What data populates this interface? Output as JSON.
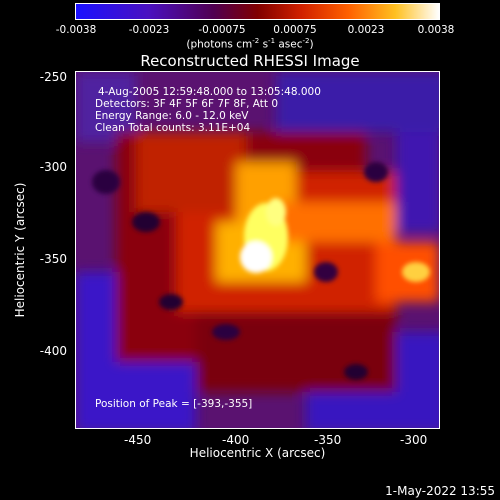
{
  "colorbar": {
    "tick_labels": [
      "-0.0038",
      "-0.0023",
      "-0.00075",
      "0.00075",
      "0.0023",
      "0.0038"
    ],
    "units_text": "(photons cm",
    "units_sup1": "-2",
    "units_mid1": " s",
    "units_sup2": "-1",
    "units_mid2": " asec",
    "units_sup3": "-2",
    "units_end": ")",
    "colors": [
      "#1a10ff",
      "#4010c0",
      "#500060",
      "#7a0000",
      "#c01000",
      "#ff5000",
      "#ffa000",
      "#ffff40",
      "#ffffff"
    ]
  },
  "title": "Reconstructed RHESSI Image",
  "info": {
    "line1": "4-Aug-2005 12:59:48.000 to 13:05:48.000",
    "line2": "Detectors: 3F 4F 5F 6F 7F 8F, Att 0",
    "line3": "Energy Range: 6.0 - 12.0 keV",
    "line4": "Clean     Total counts: 3.11E+04"
  },
  "peak_text": "Position of Peak = [-393,-355]",
  "axes": {
    "xlabel": "Heliocentric X (arcsec)",
    "ylabel": "Heliocentric Y (arcsec)",
    "x_ticks": [
      "-450",
      "-400",
      "-350",
      "-300"
    ],
    "y_ticks": [
      "-250",
      "-300",
      "-350",
      "-400"
    ]
  },
  "timestamp": "1-May-2022 13:55"
}
